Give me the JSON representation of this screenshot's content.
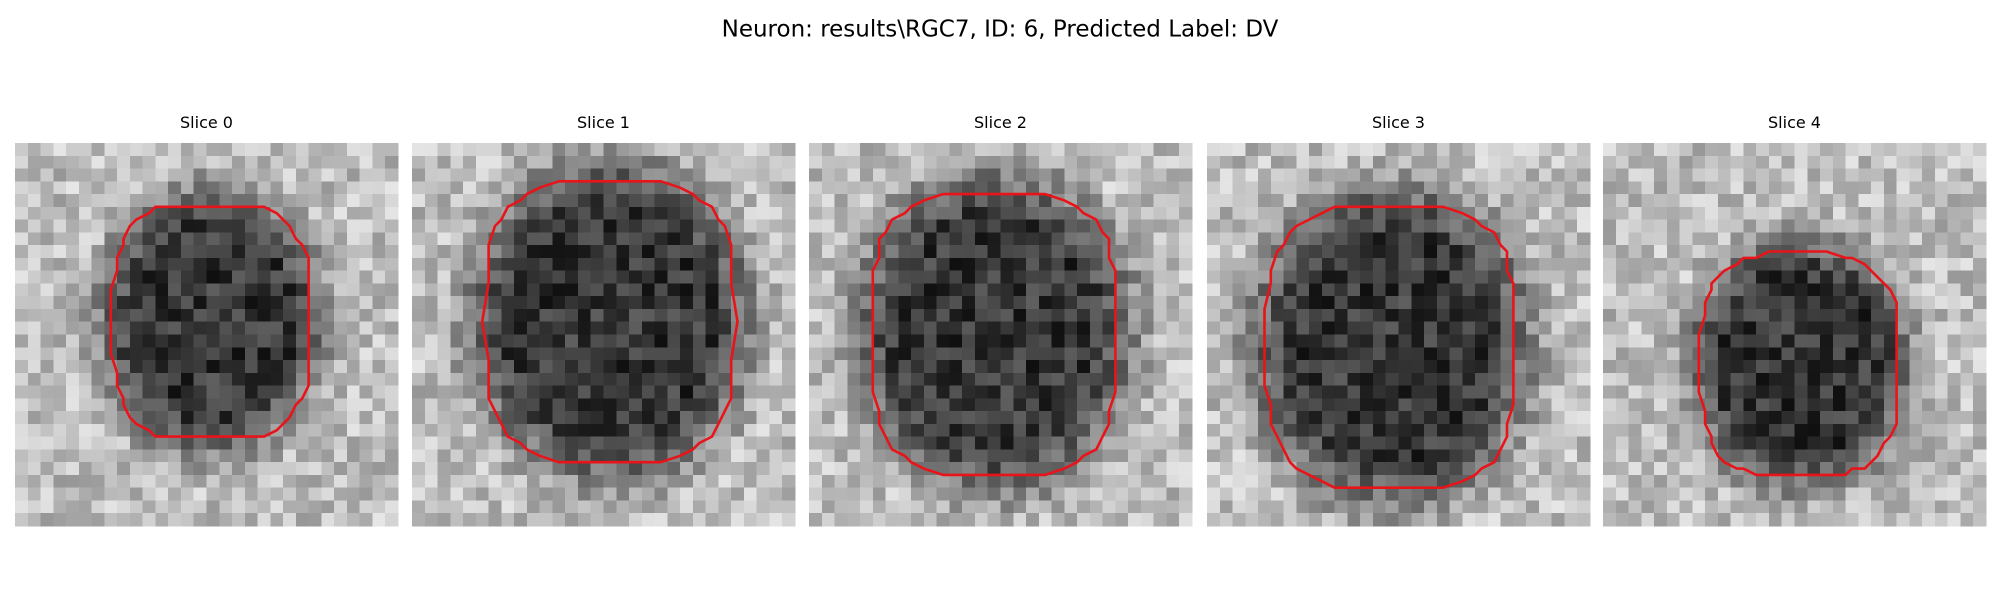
{
  "title": "Neuron: results\\RGC7, ID: 6, Predicted Label: DV",
  "panels": [
    {
      "title": "Slice 0"
    },
    {
      "title": "Slice 1"
    },
    {
      "title": "Slice 2"
    },
    {
      "title": "Slice 3"
    },
    {
      "title": "Slice 4"
    }
  ]
}
